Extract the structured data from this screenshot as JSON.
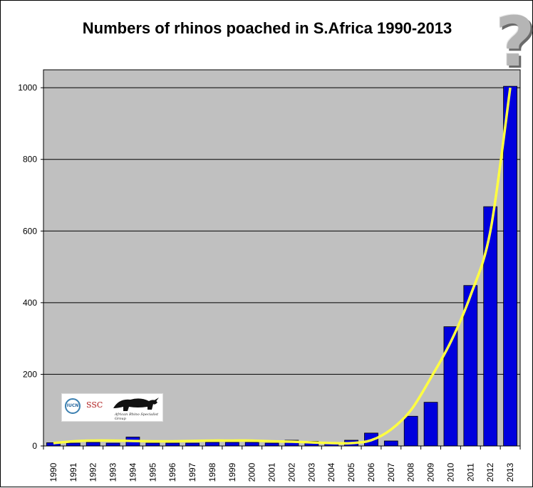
{
  "chart_data": {
    "type": "bar",
    "title": "Numbers of rhinos poached in S.Africa 1990-2013",
    "xlabel": "",
    "ylabel": "",
    "categories": [
      "1990",
      "1991",
      "1992",
      "1993",
      "1994",
      "1995",
      "1996",
      "1997",
      "1998",
      "1999",
      "2000",
      "2001",
      "2002",
      "2003",
      "2004",
      "2005",
      "2006",
      "2007",
      "2008",
      "2009",
      "2010",
      "2011",
      "2012",
      "2013"
    ],
    "values": [
      9,
      8,
      10,
      8,
      25,
      8,
      8,
      8,
      10,
      10,
      10,
      8,
      16,
      13,
      7,
      16,
      36,
      14,
      83,
      122,
      333,
      448,
      668,
      1004
    ],
    "trendline": [
      8,
      13,
      15,
      15,
      14,
      13,
      13,
      14,
      15,
      15,
      15,
      13,
      12,
      10,
      8,
      8,
      16,
      46,
      100,
      190,
      290,
      420,
      600,
      1000
    ],
    "ylim": [
      0,
      1050
    ],
    "yticks": [
      "0",
      "200",
      "400",
      "600",
      "800",
      "1000"
    ],
    "grid": true,
    "colors": {
      "bar": "#0000dd",
      "plot_background": "#c0c0c0",
      "trendline": "#ffff40",
      "gridline": "#000000"
    },
    "annotation": "?"
  },
  "logos": {
    "iucn": "IUCN",
    "ssc": "SSC",
    "afrsg": "African Rhino Specialist Group"
  }
}
